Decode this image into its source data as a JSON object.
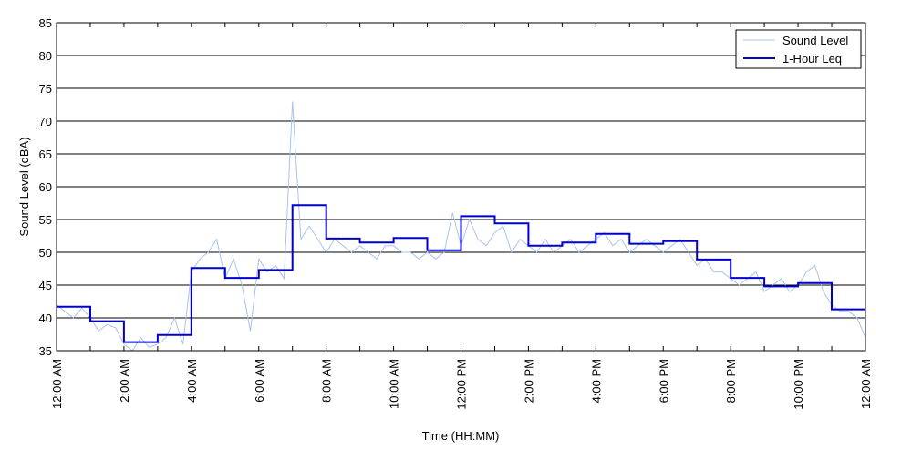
{
  "chart_data": {
    "type": "line",
    "title": "",
    "xlabel": "Time (HH:MM)",
    "ylabel": "Sound Level (dBA)",
    "ylim": [
      35,
      85
    ],
    "yticks": [
      35,
      40,
      45,
      50,
      55,
      60,
      65,
      70,
      75,
      80,
      85
    ],
    "xlim_hours": [
      0,
      24
    ],
    "xticks": [
      {
        "hour": 0,
        "label": "12:00 AM"
      },
      {
        "hour": 2,
        "label": "2:00 AM"
      },
      {
        "hour": 4,
        "label": "4:00 AM"
      },
      {
        "hour": 6,
        "label": "6:00 AM"
      },
      {
        "hour": 8,
        "label": "8:00 AM"
      },
      {
        "hour": 10,
        "label": "10:00 AM"
      },
      {
        "hour": 12,
        "label": "12:00 PM"
      },
      {
        "hour": 14,
        "label": "2:00 PM"
      },
      {
        "hour": 16,
        "label": "4:00 PM"
      },
      {
        "hour": 18,
        "label": "6:00 PM"
      },
      {
        "hour": 20,
        "label": "8:00 PM"
      },
      {
        "hour": 22,
        "label": "10:00 PM"
      },
      {
        "hour": 24,
        "label": "12:00 AM"
      }
    ],
    "grid": "horizontal",
    "legend_position": "top-right",
    "series": [
      {
        "name": "Sound Level",
        "color": "#a9c2f0",
        "style": "thin-line",
        "x_hours": [
          0,
          0.25,
          0.5,
          0.75,
          1,
          1.25,
          1.5,
          1.75,
          2,
          2.25,
          2.5,
          2.75,
          3,
          3.25,
          3.5,
          3.75,
          4,
          4.25,
          4.5,
          4.75,
          5,
          5.25,
          5.5,
          5.75,
          6,
          6.25,
          6.5,
          6.75,
          7,
          7.25,
          7.5,
          7.75,
          8,
          8.25,
          8.5,
          8.75,
          9,
          9.25,
          9.5,
          9.75,
          10,
          10.25,
          10.5,
          10.75,
          11,
          11.25,
          11.5,
          11.75,
          12,
          12.25,
          12.5,
          12.75,
          13,
          13.25,
          13.5,
          13.75,
          14,
          14.25,
          14.5,
          14.75,
          15,
          15.25,
          15.5,
          15.75,
          16,
          16.25,
          16.5,
          16.75,
          17,
          17.25,
          17.5,
          17.75,
          18,
          18.25,
          18.5,
          18.75,
          19,
          19.25,
          19.5,
          19.75,
          20,
          20.25,
          20.5,
          20.75,
          21,
          21.25,
          21.5,
          21.75,
          22,
          22.25,
          22.5,
          22.75,
          23,
          23.25,
          23.5,
          23.75,
          24
        ],
        "values": [
          42,
          41,
          40,
          41.5,
          40,
          38,
          39,
          38.5,
          36,
          35,
          37,
          35.5,
          36,
          37,
          40,
          36,
          47,
          49,
          50,
          52,
          46,
          49,
          45,
          38,
          49,
          47,
          48,
          46,
          73,
          52,
          54,
          52,
          50,
          52,
          51,
          50,
          51,
          50,
          49,
          51,
          51,
          50,
          50,
          49,
          50,
          49,
          50,
          56,
          51,
          55,
          52,
          51,
          53,
          54,
          50,
          52,
          51,
          50,
          52,
          50,
          51,
          52,
          50,
          51,
          52,
          53,
          51,
          52,
          50,
          51,
          52,
          51,
          50,
          51,
          52,
          50,
          48,
          49,
          47,
          47,
          46,
          45,
          46,
          47,
          44,
          45,
          46,
          44,
          45,
          47,
          48,
          44,
          42,
          41,
          41,
          40,
          37
        ]
      },
      {
        "name": "1-Hour Leq",
        "color": "#0000cc",
        "style": "step",
        "values": [
          41.7,
          39.5,
          36.3,
          37.4,
          47.6,
          46.1,
          47.3,
          57.2,
          52.1,
          51.5,
          52.2,
          50.3,
          55.5,
          54.4,
          51.0,
          51.5,
          52.8,
          51.3,
          51.7,
          48.9,
          46.1,
          44.8,
          45.3,
          41.3
        ]
      }
    ]
  }
}
